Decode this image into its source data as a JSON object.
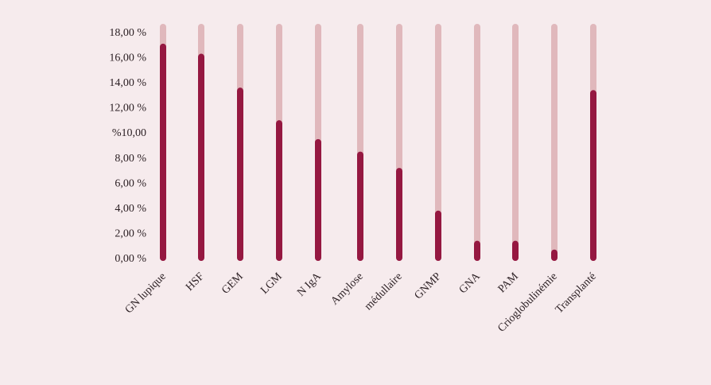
{
  "colors": {
    "background": "#f6ebed",
    "track": "#e0b8bc",
    "bar": "#951841",
    "text": "#2a1e22"
  },
  "chart_data": {
    "type": "bar",
    "title": "",
    "xlabel": "",
    "ylabel": "",
    "ylim": [
      0,
      18
    ],
    "grid": false,
    "y_ticks": [
      "0,00 %",
      "2,00 %",
      "4,00 %",
      "6,00 %",
      "8,00 %",
      "%10,00",
      "12,00 %",
      "14,00 %",
      "16,00 %",
      "18,00 %"
    ],
    "categories": [
      "GN lupique",
      "HSF",
      "GEM",
      "LGM",
      "N IgA",
      "Amylose",
      "médullaire",
      "GNMP",
      "GNA",
      "PAM",
      "Crioglobulinémie",
      "Transplanté"
    ],
    "values": [
      16.8,
      16.0,
      13.3,
      10.7,
      9.2,
      8.2,
      6.9,
      3.5,
      1.1,
      1.1,
      0.4,
      13.1
    ],
    "track_values": [
      18,
      18,
      18,
      18,
      18,
      18,
      18,
      18,
      18,
      18,
      18,
      18
    ]
  }
}
